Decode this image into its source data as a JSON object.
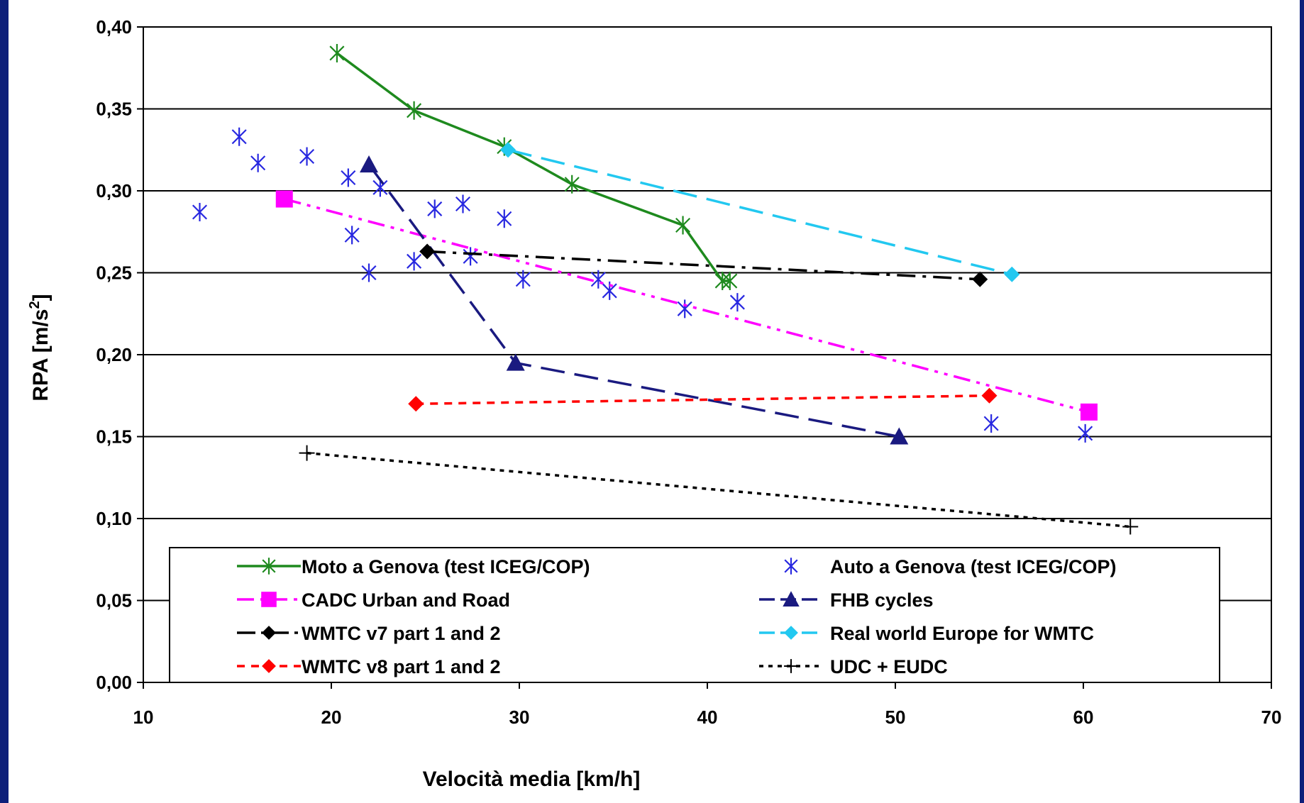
{
  "chart_data": {
    "type": "scatter",
    "xlabel": "Velocità media [km/h]",
    "ylabel": "RPA [m/s",
    "ylabel_sup": "2",
    "ylabel_end": "]",
    "xlim": [
      10,
      70
    ],
    "ylim": [
      0,
      0.4
    ],
    "x_ticks": [
      10,
      20,
      30,
      40,
      50,
      60,
      70
    ],
    "x_tick_labels": [
      "10",
      "20",
      "30",
      "40",
      "50",
      "60",
      "70"
    ],
    "y_ticks": [
      0,
      0.05,
      0.1,
      0.15,
      0.2,
      0.25,
      0.3,
      0.35,
      0.4
    ],
    "y_tick_labels": [
      "0,00",
      "0,05",
      "0,10",
      "0,15",
      "0,20",
      "0,25",
      "0,30",
      "0,35",
      "0,40"
    ],
    "grid": "horizontal",
    "legend_position": "bottom-inside",
    "series": [
      {
        "name": "Moto a Genova (test ICEG/COP)",
        "color": "#1e8a1e",
        "line": "solid",
        "marker": "asterisk",
        "points": [
          [
            20.3,
            0.384
          ],
          [
            24.4,
            0.349
          ],
          [
            29.2,
            0.327
          ],
          [
            32.8,
            0.304
          ],
          [
            38.7,
            0.279
          ],
          [
            40.8,
            0.245
          ],
          [
            41.2,
            0.245
          ]
        ]
      },
      {
        "name": "Auto a Genova (test ICEG/COP)",
        "color": "#2828e0",
        "line": "none",
        "marker": "asterisk",
        "points": [
          [
            13.0,
            0.287
          ],
          [
            15.1,
            0.333
          ],
          [
            16.1,
            0.317
          ],
          [
            18.7,
            0.321
          ],
          [
            20.9,
            0.308
          ],
          [
            21.1,
            0.273
          ],
          [
            22.0,
            0.25
          ],
          [
            22.6,
            0.302
          ],
          [
            24.4,
            0.257
          ],
          [
            25.5,
            0.289
          ],
          [
            27.0,
            0.292
          ],
          [
            27.4,
            0.26
          ],
          [
            29.2,
            0.283
          ],
          [
            30.2,
            0.246
          ],
          [
            34.2,
            0.246
          ],
          [
            34.8,
            0.239
          ],
          [
            38.8,
            0.228
          ],
          [
            41.6,
            0.232
          ],
          [
            55.1,
            0.158
          ],
          [
            60.1,
            0.152
          ]
        ]
      },
      {
        "name": "CADC Urban and Road",
        "color": "#ff00ff",
        "line": "dashdotdot",
        "marker": "square",
        "points": [
          [
            17.5,
            0.295
          ],
          [
            60.3,
            0.165
          ]
        ]
      },
      {
        "name": "FHB cycles",
        "color": "#1a1a80",
        "line": "longdash",
        "marker": "triangle",
        "points": [
          [
            22.0,
            0.316
          ],
          [
            29.8,
            0.195
          ],
          [
            50.2,
            0.15
          ]
        ]
      },
      {
        "name": "WMTC v7 part 1 and 2",
        "color": "#000000",
        "line": "dashdot",
        "marker": "diamond",
        "points": [
          [
            25.1,
            0.263
          ],
          [
            54.5,
            0.246
          ]
        ]
      },
      {
        "name": "Real world Europe for WMTC",
        "color": "#22c8f0",
        "line": "longdash",
        "marker": "diamond",
        "points": [
          [
            29.4,
            0.325
          ],
          [
            56.2,
            0.249
          ]
        ]
      },
      {
        "name": "WMTC v8 part 1 and 2",
        "color": "#ff0000",
        "line": "shortdash",
        "marker": "diamond",
        "points": [
          [
            24.5,
            0.17
          ],
          [
            55.0,
            0.175
          ]
        ]
      },
      {
        "name": "UDC + EUDC",
        "color": "#000000",
        "line": "dotted",
        "marker": "plus",
        "points": [
          [
            18.7,
            0.14
          ],
          [
            62.5,
            0.095
          ]
        ]
      }
    ]
  }
}
